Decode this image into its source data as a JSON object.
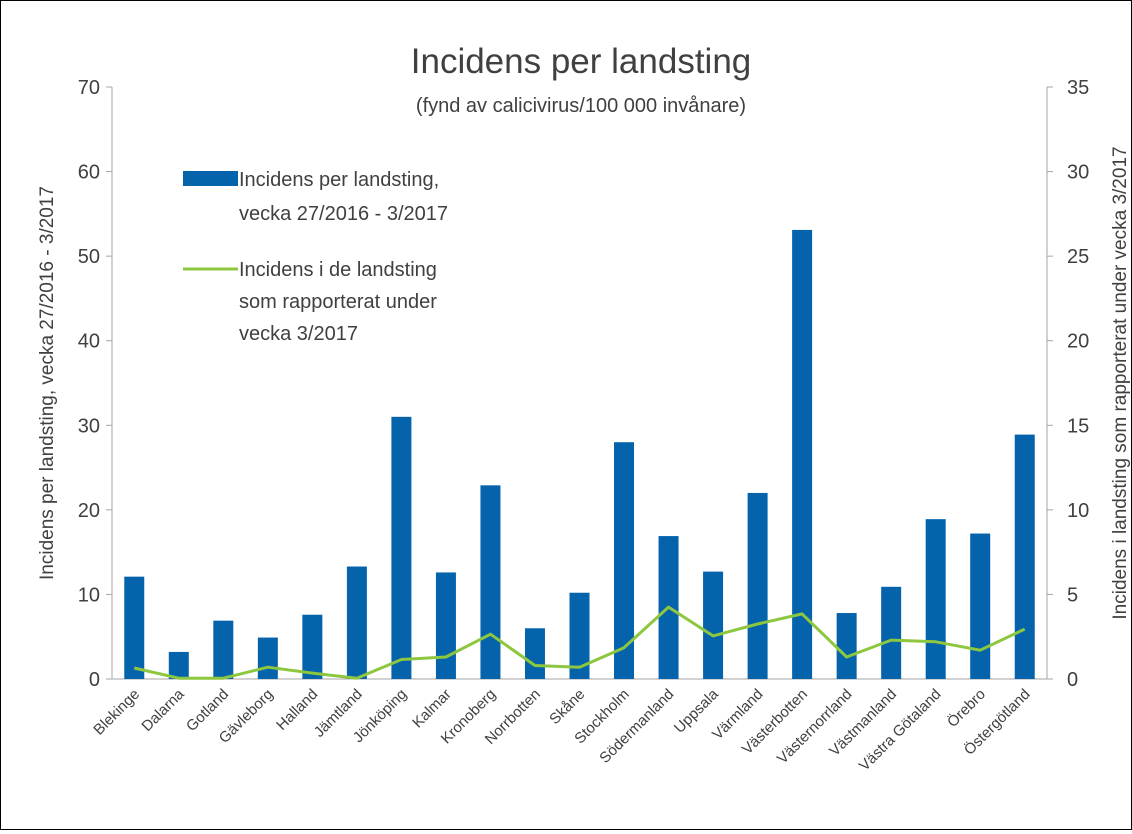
{
  "chart_data": {
    "type": "bar",
    "title": "Incidens per landsting",
    "subtitle": "(fynd av calicivirus/100 000 invånare)",
    "ylabel_left": "Incidens per landsting, vecka 27/2016 - 3/2017",
    "ylabel_right": "Incidens i landsting som rapporterat under vecka 3/2017",
    "ylim_left": [
      0,
      70
    ],
    "ylim_right": [
      0,
      35
    ],
    "yticks_left": [
      "0",
      "10",
      "20",
      "30",
      "40",
      "50",
      "60",
      "70"
    ],
    "yticks_right": [
      "0",
      "5",
      "10",
      "15",
      "20",
      "25",
      "30",
      "35"
    ],
    "grid": false,
    "legend_position": "top-left",
    "categories": [
      "Blekinge",
      "Dalarna",
      "Gotland",
      "Gävleborg",
      "Halland",
      "Jämtland",
      "Jönköping",
      "Kalmar",
      "Kronoberg",
      "Norrbotten",
      "Skåne",
      "Stockholm",
      "Södermanland",
      "Uppsala",
      "Värmland",
      "Västerbotten",
      "Västernorrland",
      "Västmanland",
      "Västra Götaland",
      "Örebro",
      "Östergötland"
    ],
    "series": [
      {
        "name": "Incidens per landsting, vecka 27/2016 - 3/2017",
        "legend_lines": [
          "Incidens per landsting,",
          "vecka 27/2016 - 3/2017"
        ],
        "type": "bar",
        "axis": "left",
        "color": "#0563AC",
        "values": [
          12.1,
          3.2,
          6.9,
          4.9,
          7.6,
          13.3,
          31.0,
          12.6,
          22.9,
          6.0,
          10.2,
          28.0,
          16.9,
          12.7,
          22.0,
          53.1,
          7.8,
          10.9,
          18.9,
          17.2,
          28.9
        ]
      },
      {
        "name": "Incidens i de landsting som rapporterat under vecka 3/2017",
        "legend_lines": [
          "Incidens i de landsting",
          "som rapporterat under",
          "vecka 3/2017"
        ],
        "type": "line",
        "axis": "right",
        "color": "#8DC63F",
        "values": [
          0.65,
          0.05,
          0.05,
          0.7,
          0.35,
          0.05,
          1.15,
          1.3,
          2.65,
          0.8,
          0.7,
          1.85,
          4.25,
          2.55,
          3.25,
          3.85,
          1.3,
          2.3,
          2.2,
          1.7,
          2.95
        ]
      }
    ]
  }
}
